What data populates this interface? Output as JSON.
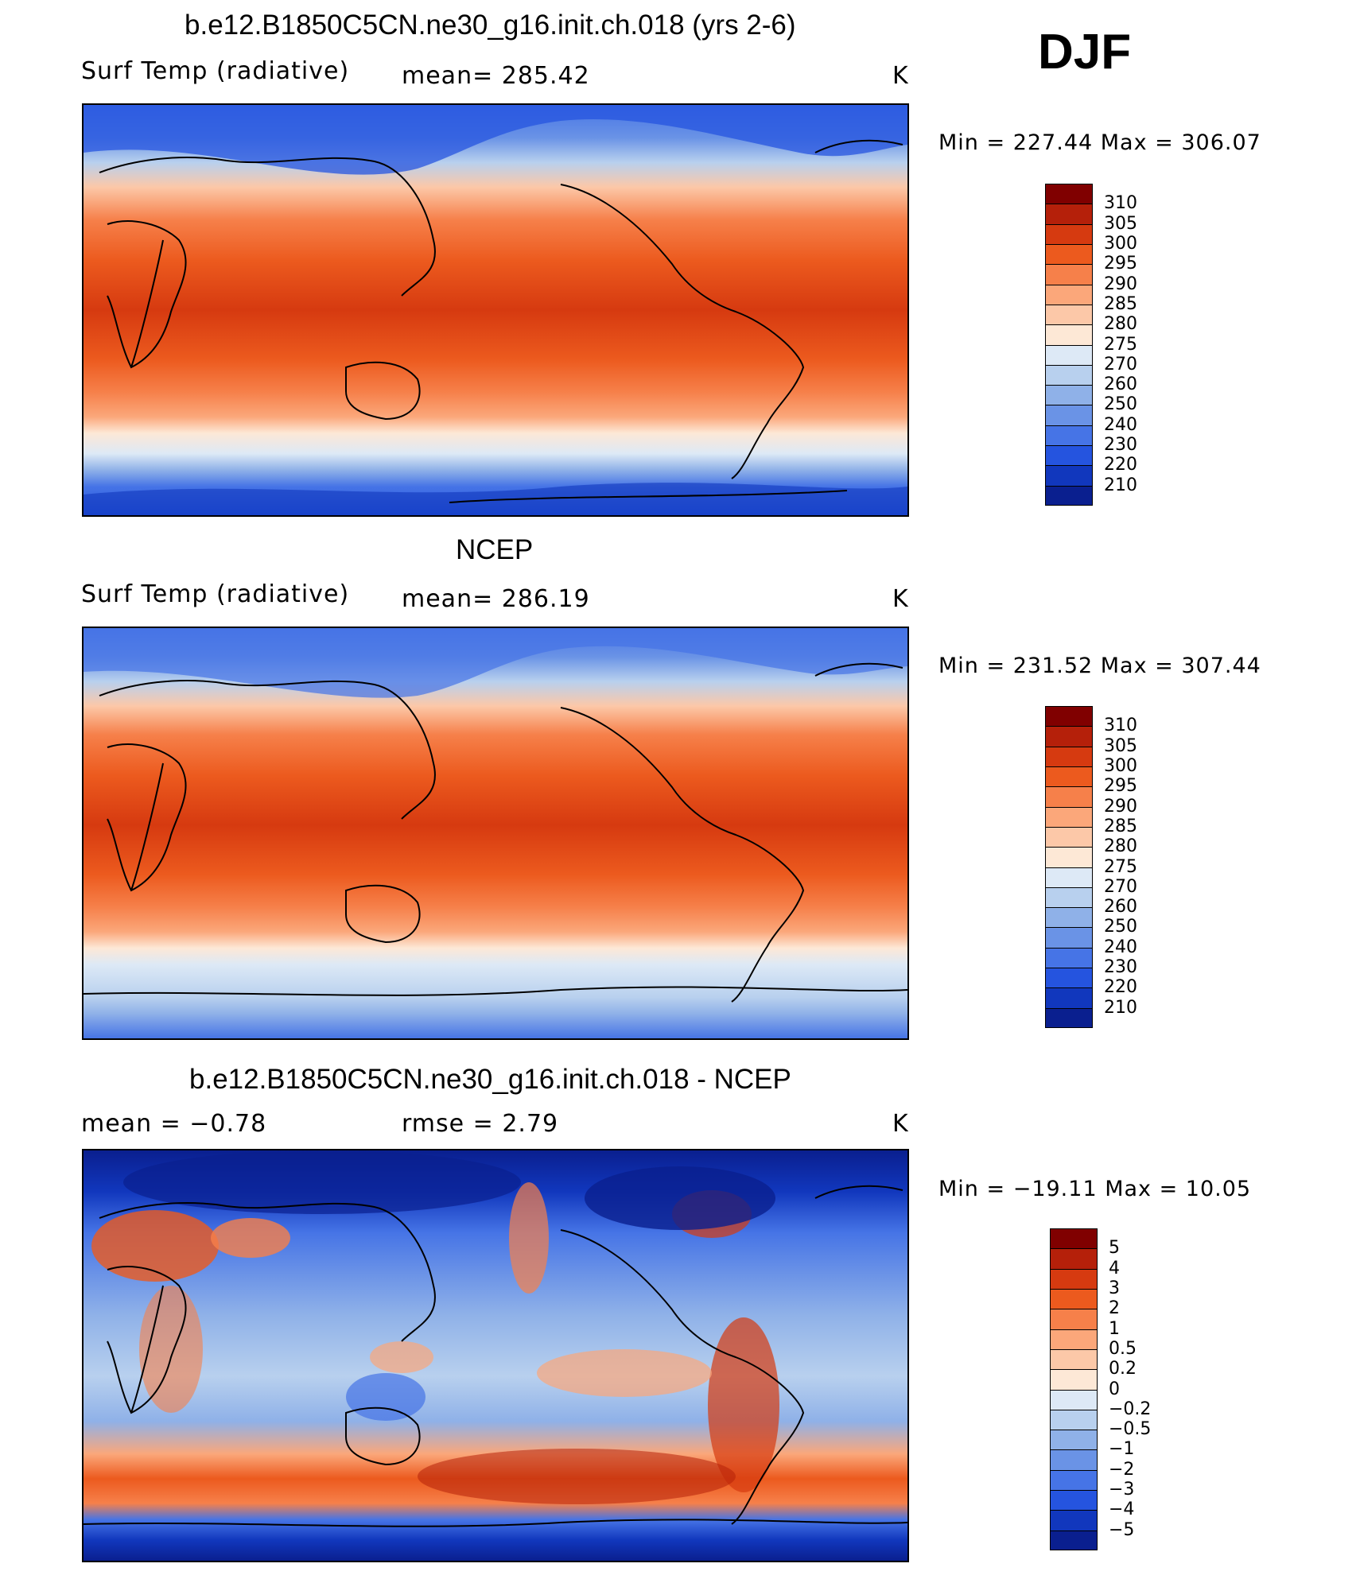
{
  "season": "DJF",
  "panels": [
    {
      "title": "b.e12.B1850C5CN.ne30_g16.init.ch.018 (yrs 2-6)",
      "left_label": "Surf Temp (radiative)",
      "mid_label": "mean=  285.42",
      "units": "K",
      "range_text": "Min = 227.44 Max = 306.07",
      "colorbar": {
        "labels": [
          "310",
          "305",
          "300",
          "295",
          "290",
          "285",
          "280",
          "275",
          "270",
          "260",
          "250",
          "240",
          "230",
          "220",
          "210"
        ],
        "colors": [
          "#800000",
          "#b5200a",
          "#d63a10",
          "#ec5a1e",
          "#f6804a",
          "#fba77a",
          "#fcc8a8",
          "#fde8d6",
          "#dde9f6",
          "#b8d0ee",
          "#8fb1e8",
          "#6a93e6",
          "#4674e6",
          "#2554df",
          "#1137bd",
          "#0a1f8f"
        ]
      }
    },
    {
      "title": "NCEP",
      "left_label": "Surf Temp (radiative)",
      "mid_label": "mean=  286.19",
      "units": "K",
      "range_text": "Min = 231.52 Max = 307.44",
      "colorbar": {
        "labels": [
          "310",
          "305",
          "300",
          "295",
          "290",
          "285",
          "280",
          "275",
          "270",
          "260",
          "250",
          "240",
          "230",
          "220",
          "210"
        ],
        "colors": [
          "#800000",
          "#b5200a",
          "#d63a10",
          "#ec5a1e",
          "#f6804a",
          "#fba77a",
          "#fcc8a8",
          "#fde8d6",
          "#dde9f6",
          "#b8d0ee",
          "#8fb1e8",
          "#6a93e6",
          "#4674e6",
          "#2554df",
          "#1137bd",
          "#0a1f8f"
        ]
      }
    },
    {
      "title": "b.e12.B1850C5CN.ne30_g16.init.ch.018 - NCEP",
      "left_label": "mean =   −0.78",
      "mid_label": "rmse =    2.79",
      "units": "K",
      "range_text": "Min = −19.11 Max =  10.05",
      "colorbar": {
        "labels": [
          "5",
          "4",
          "3",
          "2",
          "1",
          "0.5",
          "0.2",
          "0",
          "−0.2",
          "−0.5",
          "−1",
          "−2",
          "−3",
          "−4",
          "−5"
        ],
        "colors": [
          "#800000",
          "#b5200a",
          "#d63a10",
          "#ec5a1e",
          "#f6804a",
          "#fba77a",
          "#fcc8a8",
          "#fde8d6",
          "#dde9f6",
          "#b8d0ee",
          "#8fb1e8",
          "#6a93e6",
          "#4674e6",
          "#2554df",
          "#1137bd",
          "#0a1f8f"
        ]
      }
    }
  ]
}
